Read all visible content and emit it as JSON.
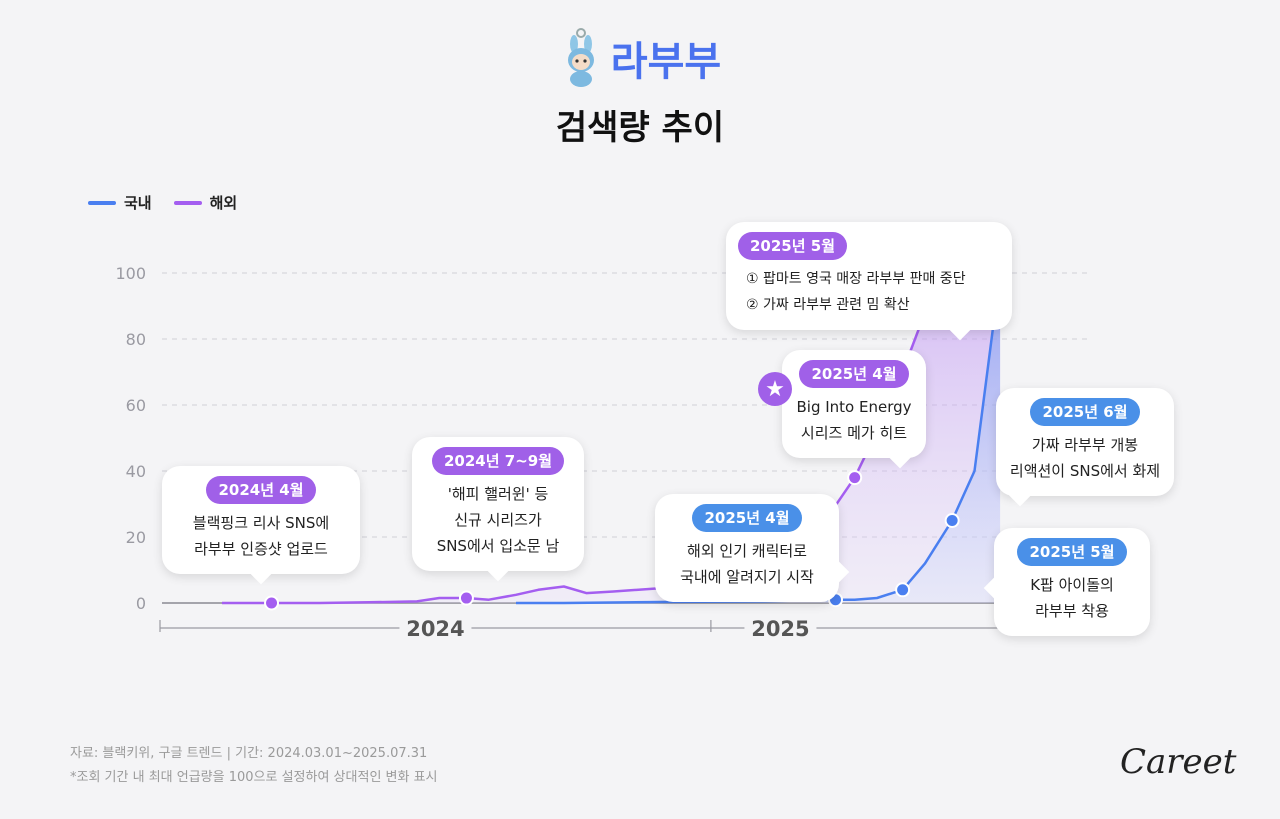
{
  "header": {
    "title": "라부부",
    "subtitle": "검색량 추이"
  },
  "legend": [
    {
      "label": "국내",
      "color": "#4a7ff0"
    },
    {
      "label": "해외",
      "color": "#a45ef0"
    }
  ],
  "chart_data": {
    "type": "line",
    "ylim": [
      0,
      100
    ],
    "yticks": [
      0,
      20,
      40,
      60,
      80,
      100
    ],
    "x_labels": [
      "2024",
      "2025"
    ],
    "series": [
      {
        "name": "국내",
        "color": "#4a7ff0",
        "points": [
          {
            "x": "2024-09",
            "y": 0
          },
          {
            "x": "2024-10",
            "y": 0
          },
          {
            "x": "2024-12",
            "y": 0.3
          },
          {
            "x": "2025-02",
            "y": 0.5
          },
          {
            "x": "2025-03",
            "y": 0.8
          },
          {
            "x": "2025-03-20",
            "y": 1
          },
          {
            "x": "2025-04",
            "y": 1
          },
          {
            "x": "2025-04-15",
            "y": 1.5
          },
          {
            "x": "2025-05",
            "y": 4
          },
          {
            "x": "2025-05-15",
            "y": 12
          },
          {
            "x": "2025-06",
            "y": 25
          },
          {
            "x": "2025-06-15",
            "y": 40
          },
          {
            "x": "2025-07",
            "y": 100
          }
        ]
      },
      {
        "name": "해외",
        "color": "#a45ef0",
        "points": [
          {
            "x": "2024-03",
            "y": 0
          },
          {
            "x": "2024-04",
            "y": 0
          },
          {
            "x": "2024-05",
            "y": 0
          },
          {
            "x": "2024-06",
            "y": 0.2
          },
          {
            "x": "2024-07",
            "y": 0.5
          },
          {
            "x": "2024-07-15",
            "y": 1.5
          },
          {
            "x": "2024-08",
            "y": 1.5
          },
          {
            "x": "2024-08-15",
            "y": 1
          },
          {
            "x": "2024-09",
            "y": 2.5
          },
          {
            "x": "2024-09-15",
            "y": 4
          },
          {
            "x": "2024-10",
            "y": 5
          },
          {
            "x": "2024-10-15",
            "y": 3
          },
          {
            "x": "2024-11",
            "y": 3.5
          },
          {
            "x": "2024-12",
            "y": 4.5
          },
          {
            "x": "2025-01",
            "y": 10
          },
          {
            "x": "2025-02",
            "y": 18
          },
          {
            "x": "2025-02-15",
            "y": 22
          },
          {
            "x": "2025-03",
            "y": 26
          },
          {
            "x": "2025-03-08",
            "y": 22
          },
          {
            "x": "2025-03-15",
            "y": 26
          },
          {
            "x": "2025-04",
            "y": 38
          },
          {
            "x": "2025-04-15",
            "y": 52
          },
          {
            "x": "2025-05",
            "y": 70
          },
          {
            "x": "2025-05-15",
            "y": 88
          },
          {
            "x": "2025-06",
            "y": 100
          },
          {
            "x": "2025-06-15",
            "y": 87
          },
          {
            "x": "2025-07",
            "y": 100
          }
        ]
      }
    ],
    "highlight_points": [
      {
        "series": "해외",
        "x": "2024-04"
      },
      {
        "series": "해외",
        "x": "2024-08"
      },
      {
        "series": "해외",
        "x": "2025-04"
      },
      {
        "series": "해외",
        "x": "2025-05"
      },
      {
        "series": "국내",
        "x": "2025-03-20"
      },
      {
        "series": "국내",
        "x": "2025-05"
      },
      {
        "series": "국내",
        "x": "2025-06"
      },
      {
        "series": "국내",
        "x": "2025-07"
      }
    ]
  },
  "callouts": {
    "c1": {
      "date": "2024년 4월",
      "lines": [
        "블랙핑크 리사 SNS에",
        "라부부 인증샷 업로드"
      ]
    },
    "c2": {
      "date": "2024년 7~9월",
      "lines": [
        "'해피 핼러윈' 등",
        "신규 시리즈가",
        "SNS에서 입소문 남"
      ]
    },
    "c3": {
      "date": "2025년 4월",
      "lines": [
        "해외 인기 캐릭터로",
        "국내에 알려지기 시작"
      ]
    },
    "c4": {
      "date": "2025년 4월",
      "lines": [
        "Big Into Energy",
        "시리즈 메가 히트"
      ]
    },
    "c5": {
      "date": "2025년 5월",
      "lines": [
        "① 팝마트 영국 매장 라부부 판매 중단",
        "② 가짜 라부부 관련 밈 확산"
      ]
    },
    "c6": {
      "date": "2025년 6월",
      "lines": [
        "가짜 라부부 개봉",
        "리액션이 SNS에서 화제"
      ]
    },
    "c7": {
      "date": "2025년 5월",
      "lines": [
        "K팝 아이돌의",
        "라부부 착용"
      ]
    }
  },
  "source": {
    "line1": "자료: 블랙키위, 구글 트렌드 | 기간: 2024.03.01~2025.07.31",
    "line2": "*조회 기간 내 최대 언급량을 100으로 설정하여 상대적인 변화 표시"
  },
  "logo": "Careet"
}
